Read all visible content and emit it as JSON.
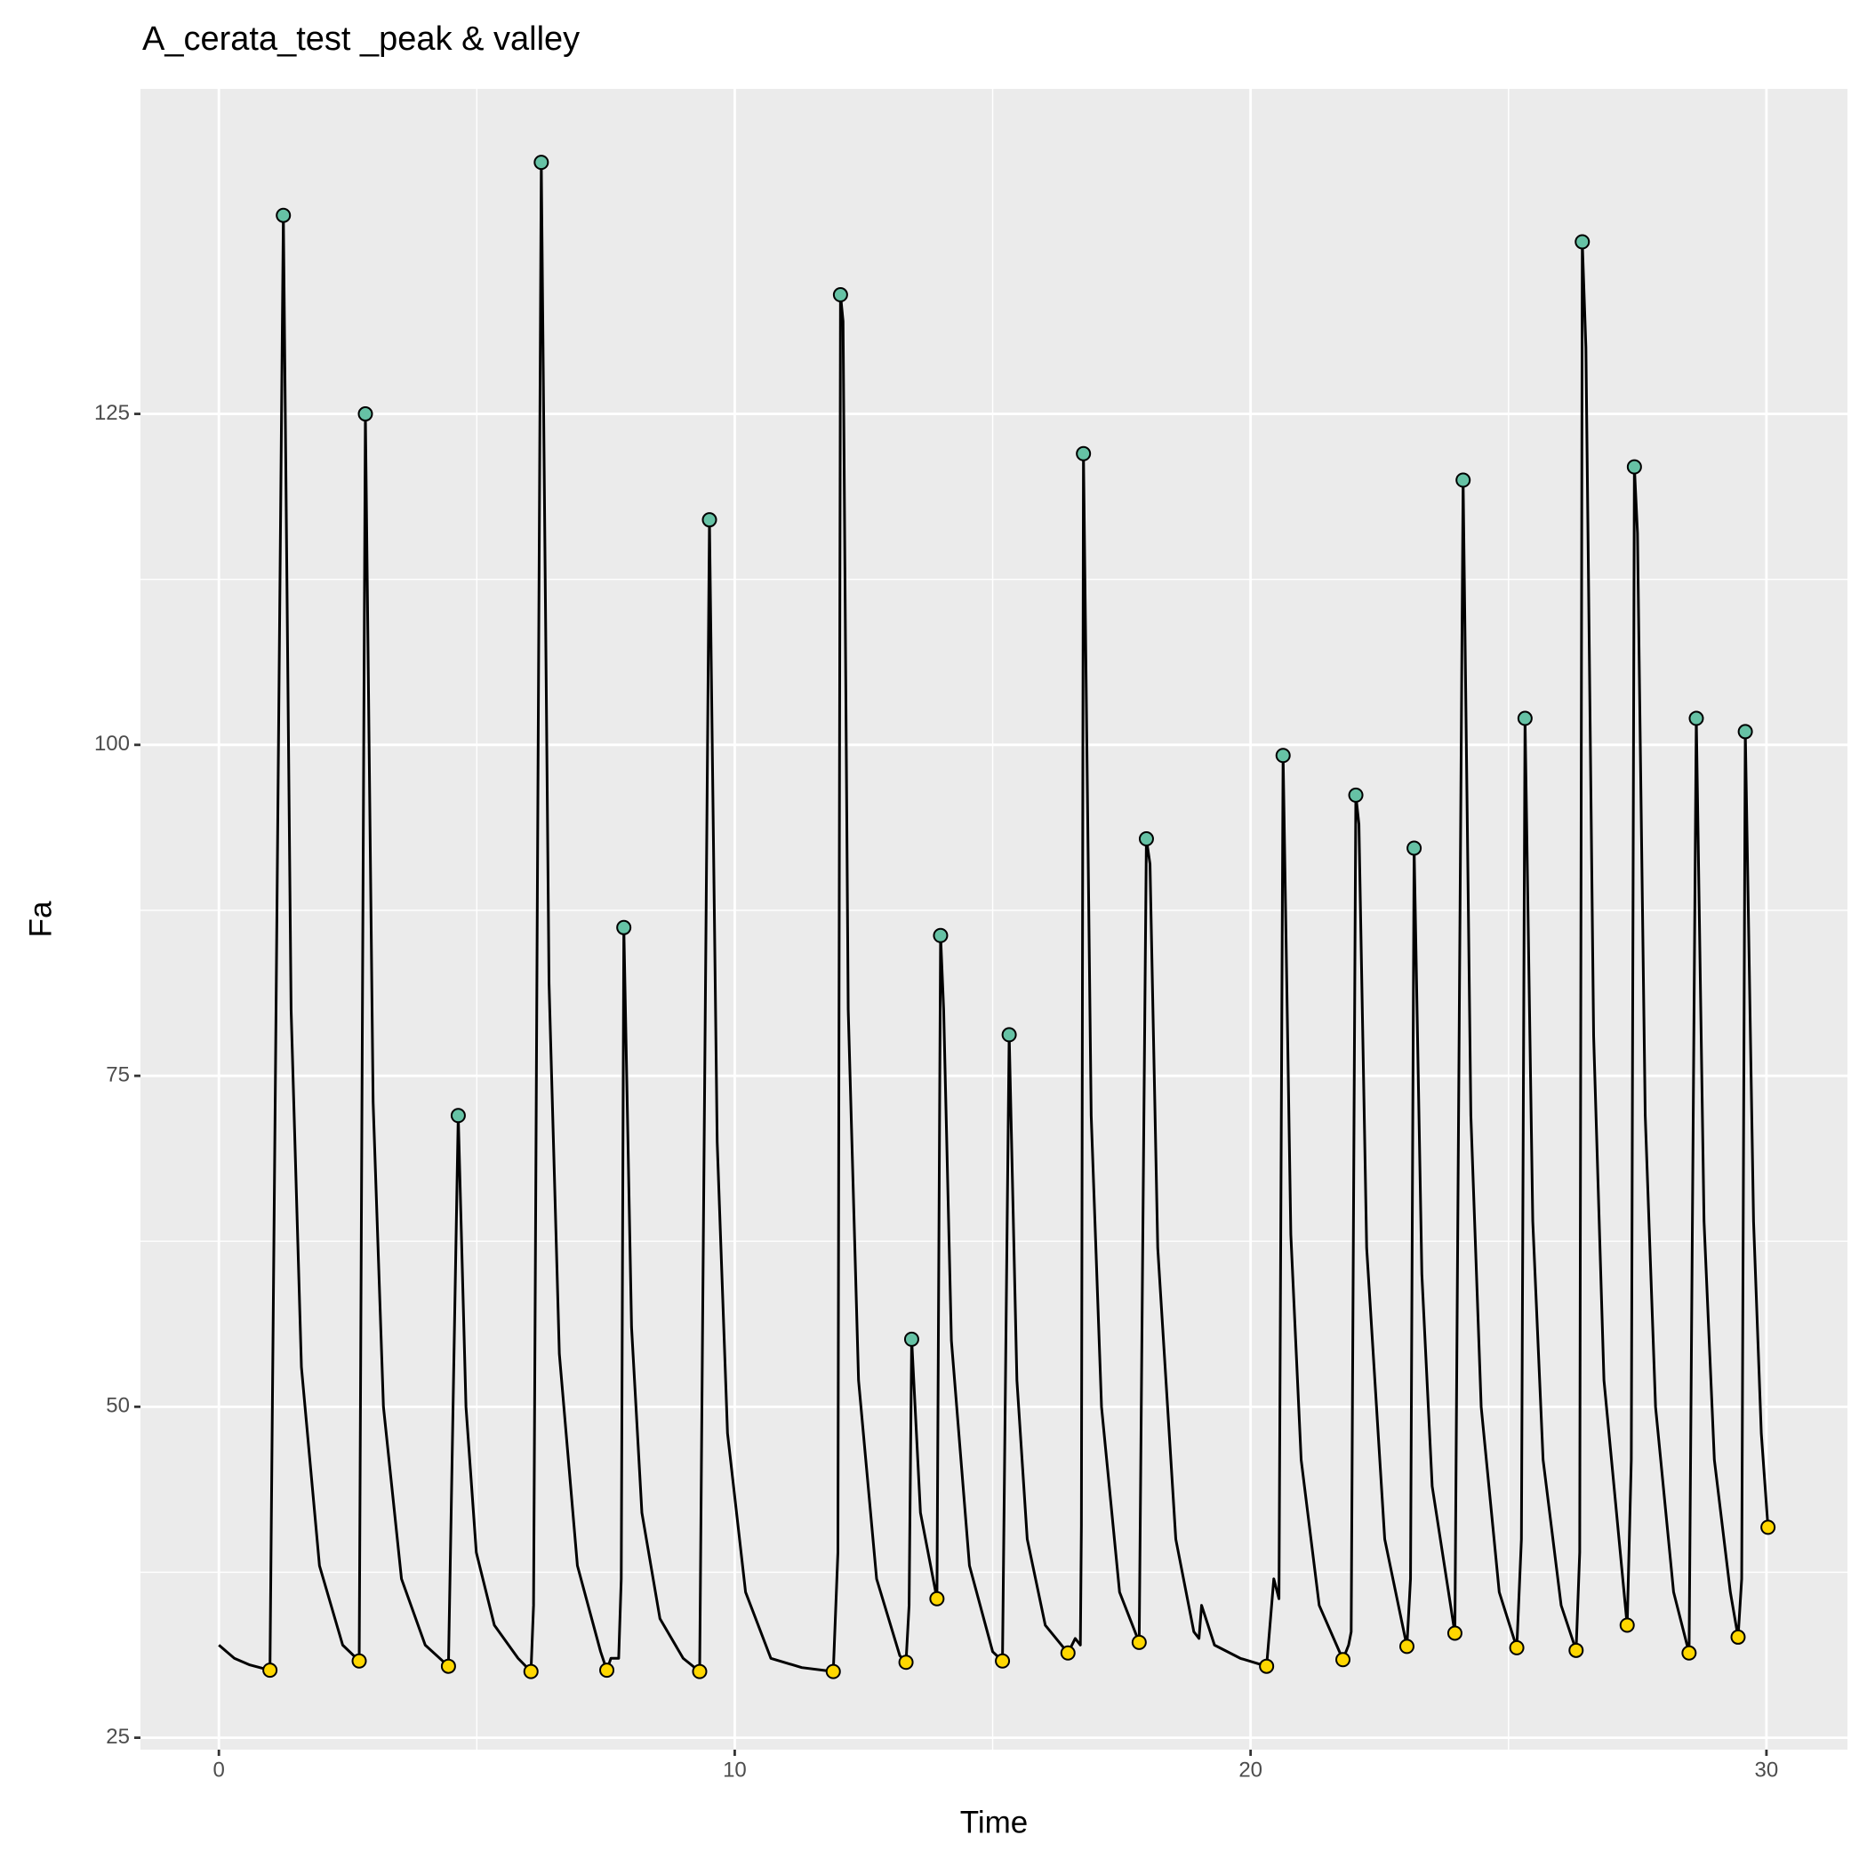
{
  "chart_data": {
    "type": "line",
    "title": "A_cerata_test _peak & valley",
    "x_label": "Time",
    "y_label": "Fa",
    "xlim": [
      -1.52,
      31.57
    ],
    "ylim": [
      24.1,
      149.55
    ],
    "xticks": [
      0,
      10,
      20,
      30
    ],
    "yticks": [
      25,
      50,
      75,
      100,
      125
    ],
    "grid": true,
    "series": [
      {
        "type": "line",
        "color": "#000000",
        "x": [
          0,
          0.3,
          0.6,
          0.99,
          1.25,
          1.4,
          1.6,
          1.95,
          2.4,
          2.72,
          2.84,
          2.99,
          3.19,
          3.54,
          4.0,
          4.45,
          4.64,
          4.79,
          4.99,
          5.34,
          5.8,
          6.05,
          6.1,
          6.25,
          6.4,
          6.6,
          6.95,
          7.4,
          7.52,
          7.6,
          7.75,
          7.8,
          7.85,
          8.0,
          8.2,
          8.55,
          9.0,
          9.32,
          9.51,
          9.66,
          9.86,
          10.21,
          10.7,
          11.3,
          11.91,
          12.0,
          12.05,
          12.1,
          12.2,
          12.4,
          12.75,
          13.2,
          13.32,
          13.38,
          13.43,
          13.6,
          13.92,
          13.99,
          14.05,
          14.2,
          14.55,
          15.0,
          15.19,
          15.32,
          15.47,
          15.67,
          16.02,
          16.46,
          16.6,
          16.7,
          16.72,
          16.76,
          16.91,
          17.11,
          17.46,
          17.84,
          17.98,
          18.05,
          18.2,
          18.55,
          18.9,
          19.0,
          19.05,
          19.3,
          19.8,
          20.31,
          20.45,
          20.55,
          20.63,
          20.78,
          20.98,
          21.33,
          21.79,
          21.9,
          21.95,
          22.04,
          22.1,
          22.25,
          22.6,
          23.03,
          23.1,
          23.17,
          23.32,
          23.52,
          23.96,
          24.12,
          24.27,
          24.47,
          24.82,
          25.16,
          25.25,
          25.32,
          25.47,
          25.67,
          26.02,
          26.31,
          26.38,
          26.43,
          26.5,
          26.65,
          26.85,
          27.3,
          27.38,
          27.44,
          27.5,
          27.65,
          27.85,
          28.2,
          28.5,
          28.64,
          28.79,
          28.99,
          29.3,
          29.45,
          29.52,
          29.59,
          29.75,
          29.9,
          30.03
        ],
        "y": [
          32,
          31,
          30.5,
          30.1,
          140,
          80,
          53,
          38,
          32,
          30.8,
          125,
          73,
          50,
          37,
          32,
          30.4,
          72,
          50,
          39,
          33.5,
          31,
          30,
          35,
          144,
          82,
          54,
          38,
          31.5,
          30.1,
          31,
          31,
          37,
          86.2,
          56,
          42,
          34,
          31,
          30,
          117,
          70,
          48,
          36,
          31,
          30.3,
          30,
          39,
          134,
          132,
          80,
          52,
          37,
          31.2,
          30.7,
          35,
          55.1,
          42,
          35.5,
          85.6,
          80,
          55,
          38,
          31.5,
          30.8,
          78.1,
          52,
          40,
          33.5,
          31.4,
          32.5,
          32,
          41,
          122,
          72,
          50,
          36,
          32.2,
          92.9,
          91,
          62,
          40,
          33,
          32.5,
          35,
          32,
          31,
          30.4,
          37,
          35.5,
          99.2,
          63,
          46,
          35,
          30.9,
          32,
          33,
          96.2,
          94,
          62,
          40,
          31.9,
          37,
          92.2,
          60,
          44,
          32.9,
          120,
          72,
          50,
          36,
          31.8,
          40,
          102,
          64,
          46,
          35,
          31.6,
          39,
          138,
          130,
          78,
          52,
          33.5,
          46,
          121,
          116,
          72,
          50,
          36,
          31.4,
          102,
          64,
          46,
          36,
          32.6,
          37,
          101,
          64,
          48,
          40.9
        ]
      },
      {
        "type": "scatter",
        "color": "#66c2a5",
        "x": [
          1.25,
          2.84,
          4.64,
          6.25,
          7.85,
          9.51,
          12.05,
          13.43,
          13.99,
          15.32,
          16.76,
          17.98,
          20.63,
          22.04,
          23.17,
          24.12,
          25.32,
          26.43,
          27.44,
          28.64,
          29.59
        ],
        "y": [
          140,
          125,
          72,
          144,
          86.2,
          117,
          134,
          55.1,
          85.6,
          78.1,
          122,
          92.9,
          99.2,
          96.2,
          92.2,
          120,
          102,
          138,
          121,
          102,
          101
        ]
      },
      {
        "type": "scatter",
        "color": "#ffd700",
        "x": [
          0.99,
          2.72,
          4.45,
          6.05,
          7.52,
          9.32,
          11.91,
          13.32,
          13.92,
          15.19,
          16.46,
          17.84,
          20.31,
          21.79,
          23.03,
          23.96,
          25.16,
          26.31,
          27.3,
          28.5,
          29.45,
          30.03
        ],
        "y": [
          30.1,
          30.8,
          30.4,
          30,
          30.1,
          30,
          30,
          30.7,
          35.5,
          30.8,
          31.4,
          32.2,
          30.4,
          30.9,
          31.9,
          32.9,
          31.8,
          31.6,
          33.5,
          31.4,
          32.6,
          40.9
        ]
      }
    ]
  }
}
